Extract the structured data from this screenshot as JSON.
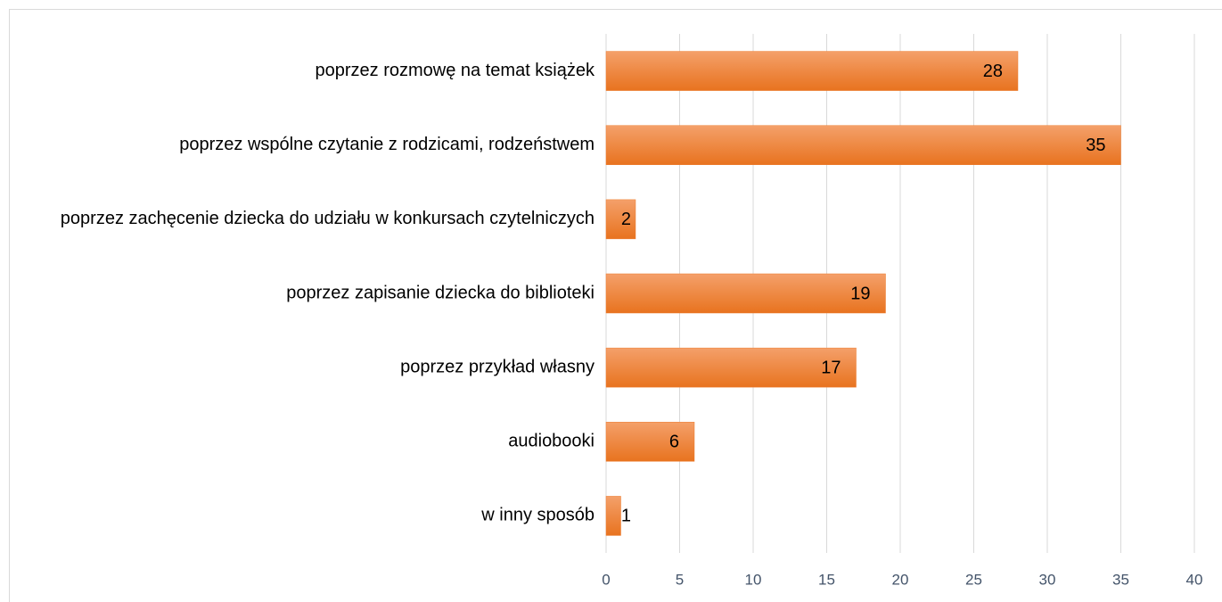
{
  "chart_data": {
    "type": "bar",
    "orientation": "horizontal",
    "categories": [
      "poprzez rozmowę na temat książek",
      "poprzez wspólne czytanie z rodzicami, rodzeństwem",
      "poprzez zachęcenie dziecka do udziału w konkursach czytelniczych",
      "poprzez zapisanie dziecka do biblioteki",
      "poprzez przykład własny",
      "audiobooki",
      "w inny sposób"
    ],
    "values": [
      28,
      35,
      2,
      19,
      17,
      6,
      1
    ],
    "color": "#ed7d31",
    "xlim": [
      0,
      40
    ],
    "xticks": [
      0,
      5,
      10,
      15,
      20,
      25,
      30,
      35,
      40
    ],
    "grid": true
  }
}
